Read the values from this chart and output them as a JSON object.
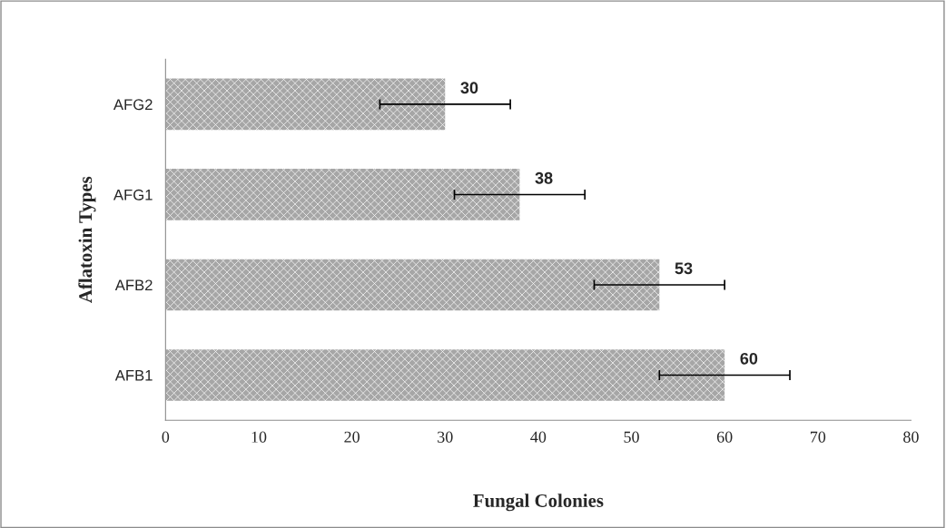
{
  "chart_data": {
    "type": "bar",
    "orientation": "horizontal",
    "categories": [
      "AFG2",
      "AFG1",
      "AFB2",
      "AFB1"
    ],
    "values": [
      30,
      38,
      53,
      60
    ],
    "errors": [
      7,
      7,
      7,
      7
    ],
    "color": "#a6a6a6",
    "xlim": [
      0,
      80
    ],
    "xticks": [
      0,
      10,
      20,
      30,
      40,
      50,
      60,
      70,
      80
    ],
    "xlabel": "Fungal Colonies",
    "ylabel": "Aflatoxin Types",
    "data_labels": true,
    "grid": false,
    "legend": false
  }
}
